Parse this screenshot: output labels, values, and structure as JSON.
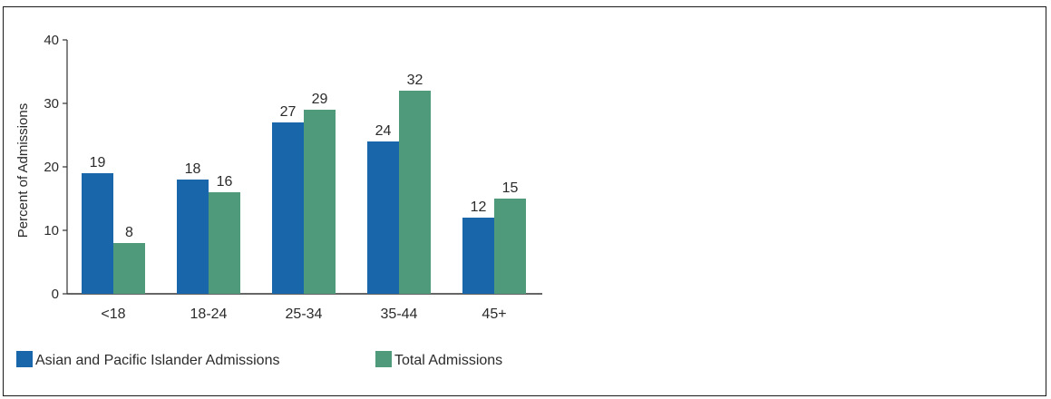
{
  "chart_data": {
    "type": "bar",
    "title": "",
    "xlabel": "",
    "ylabel": "Percent of Admissions",
    "ylim": [
      0,
      40
    ],
    "yticks": [
      0,
      10,
      20,
      30,
      40
    ],
    "categories": [
      "<18",
      "18-24",
      "25-34",
      "35-44",
      "45+"
    ],
    "series": [
      {
        "name": "Asian and Pacific Islander Admissions",
        "color": "#1a66ab",
        "values": [
          19,
          18,
          27,
          24,
          12
        ],
        "value_labels": [
          "19",
          "18",
          "27",
          "24",
          "12"
        ]
      },
      {
        "name": "Total Admissions",
        "color": "#4f9a7a",
        "values": [
          8,
          16,
          29,
          32,
          15
        ],
        "value_labels": [
          "8",
          "16",
          "29",
          "32",
          "15"
        ]
      }
    ],
    "grid": false,
    "legend": "bottom-left"
  }
}
